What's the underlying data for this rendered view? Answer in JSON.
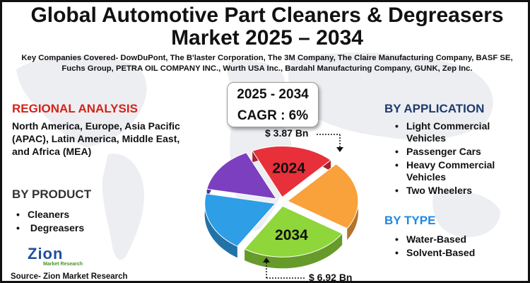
{
  "title_line1": "Global Automotive Part Cleaners & Degreasers",
  "title_line2": "Market 2025 – 2034",
  "companies": "Key Companies Covered- DowDuPont, The B'laster Corporation, The 3M Company, The Claire Manufacturing Company, BASF SE, Fuchs Group, PETRA OIL COMPANY INC., Wurth USA Inc., Bardahl Manufacturing Company, GUNK, Zep Inc.",
  "cagr_box": {
    "period": "2025 - 2034",
    "cagr": "CAGR : 6%"
  },
  "regional": {
    "heading": "REGIONAL ANALYSIS",
    "text": "North America, Europe, Asia Pacific (APAC), Latin America, Middle East, and Africa (MEA)"
  },
  "product": {
    "heading": "BY PRODUCT",
    "items": [
      "Cleaners",
      " Degreasers"
    ]
  },
  "application": {
    "heading": "BY APPLICATION",
    "items": [
      "Light Commercial Vehicles",
      "Passenger Cars",
      "Heavy Commercial Vehicles",
      "Two Wheelers"
    ]
  },
  "type": {
    "heading": "BY TYPE",
    "items": [
      "Water-Based",
      "Solvent-Based"
    ]
  },
  "source": "Source- Zion Market Research",
  "logo": {
    "name": "Zion",
    "sub": "Market Research"
  },
  "colors": {
    "title": "#111111",
    "red_heading": "#d3231a",
    "navy_heading": "#1f3a6e",
    "blue_heading": "#1e88e5",
    "map": "#e9ecef"
  },
  "chart_data": {
    "type": "pie",
    "style": "3d exploded",
    "values": [
      3.87,
      6.92
    ],
    "value_labels": [
      "$ 3.87 Bn",
      "$ 6.92 Bn"
    ],
    "slice_labels": [
      "2024",
      "2034"
    ],
    "slices": [
      {
        "label": "2024",
        "color": "#e8303a",
        "fraction": 0.19
      },
      {
        "label": "",
        "color": "#f9a13a",
        "fraction": 0.22
      },
      {
        "label": "2034",
        "color": "#8ed63a",
        "fraction": 0.25
      },
      {
        "label": "",
        "color": "#2e9ee6",
        "fraction": 0.19
      },
      {
        "label": "",
        "color": "#7b3fbf",
        "fraction": 0.15
      }
    ]
  }
}
